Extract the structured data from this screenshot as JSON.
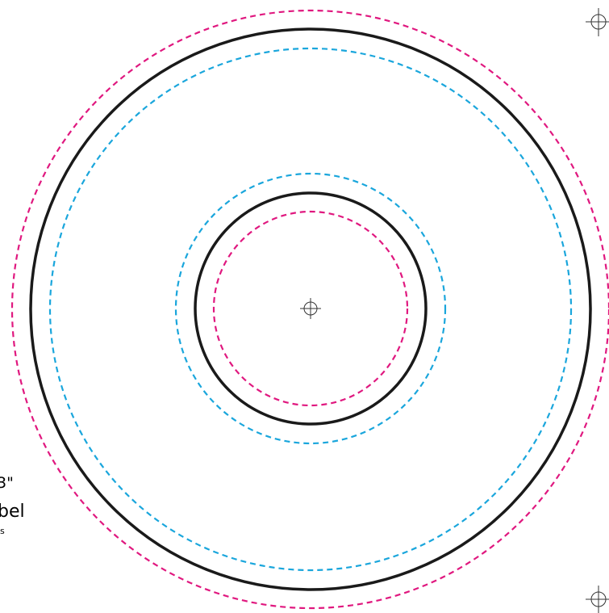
{
  "side_text": {
    "size": "3\"",
    "title": "bel",
    "note": "s"
  }
}
